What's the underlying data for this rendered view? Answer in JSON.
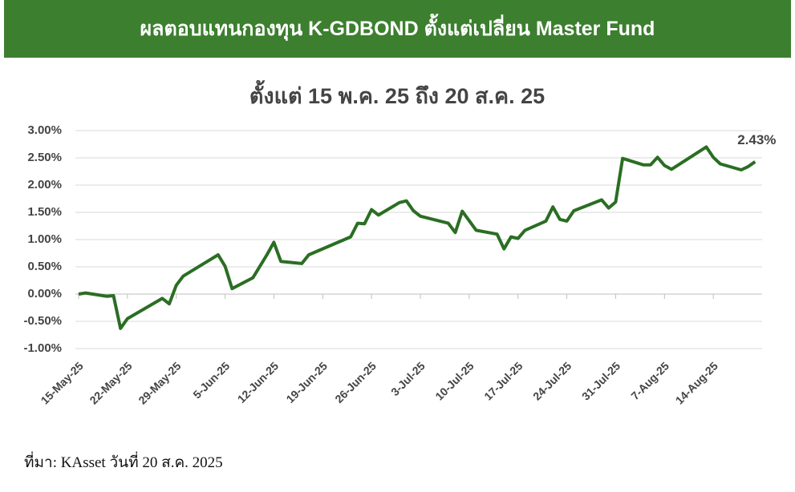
{
  "chart_data": {
    "type": "line",
    "header": "ผลตอบแทนกองทุน K-GDBOND ตั้งแต่เปลี่ยน Master Fund",
    "title": "ตั้งแต่ 15 พ.ค. 25 ถึง 20 ส.ค. 25",
    "source": "ที่มา:  KAsset วันที่ 20 ส.ค. 2025",
    "x": [
      "2025-05-15",
      "2025-05-16",
      "2025-05-19",
      "2025-05-20",
      "2025-05-21",
      "2025-05-22",
      "2025-05-27",
      "2025-05-28",
      "2025-05-29",
      "2025-05-30",
      "2025-06-04",
      "2025-06-05",
      "2025-06-06",
      "2025-06-09",
      "2025-06-11",
      "2025-06-12",
      "2025-06-13",
      "2025-06-16",
      "2025-06-17",
      "2025-06-23",
      "2025-06-24",
      "2025-06-25",
      "2025-06-26",
      "2025-06-27",
      "2025-06-30",
      "2025-07-01",
      "2025-07-02",
      "2025-07-03",
      "2025-07-07",
      "2025-07-08",
      "2025-07-09",
      "2025-07-11",
      "2025-07-14",
      "2025-07-15",
      "2025-07-16",
      "2025-07-17",
      "2025-07-18",
      "2025-07-21",
      "2025-07-22",
      "2025-07-23",
      "2025-07-24",
      "2025-07-25",
      "2025-07-29",
      "2025-07-30",
      "2025-07-31",
      "2025-08-01",
      "2025-08-04",
      "2025-08-05",
      "2025-08-06",
      "2025-08-07",
      "2025-08-08",
      "2025-08-13",
      "2025-08-14",
      "2025-08-15",
      "2025-08-18",
      "2025-08-19",
      "2025-08-20"
    ],
    "series": [
      {
        "name": "K-GDBOND",
        "color": "#2a6e23",
        "values": [
          0.0,
          0.02,
          -0.04,
          -0.03,
          -0.63,
          -0.45,
          -0.08,
          -0.18,
          0.16,
          0.33,
          0.72,
          0.51,
          0.1,
          0.3,
          0.72,
          0.95,
          0.6,
          0.56,
          0.72,
          1.05,
          1.3,
          1.29,
          1.55,
          1.45,
          1.68,
          1.71,
          1.53,
          1.43,
          1.3,
          1.13,
          1.52,
          1.17,
          1.1,
          0.83,
          1.05,
          1.02,
          1.17,
          1.34,
          1.6,
          1.37,
          1.34,
          1.53,
          1.73,
          1.58,
          1.69,
          2.49,
          2.37,
          2.37,
          2.51,
          2.36,
          2.29,
          2.7,
          2.51,
          2.39,
          2.28,
          2.34,
          2.43
        ]
      }
    ],
    "annotations": [
      {
        "text": "2.43%",
        "x": "2025-08-20",
        "y": 2.43
      }
    ],
    "xlim": [
      "2025-05-15",
      "2025-08-21"
    ],
    "xticks": [
      {
        "value": "2025-05-15",
        "label": "15-May-25"
      },
      {
        "value": "2025-05-22",
        "label": "22-May-25"
      },
      {
        "value": "2025-05-29",
        "label": "29-May-25"
      },
      {
        "value": "2025-06-05",
        "label": "5-Jun-25"
      },
      {
        "value": "2025-06-12",
        "label": "12-Jun-25"
      },
      {
        "value": "2025-06-19",
        "label": "19-Jun-25"
      },
      {
        "value": "2025-06-26",
        "label": "26-Jun-25"
      },
      {
        "value": "2025-07-03",
        "label": "3-Jul-25"
      },
      {
        "value": "2025-07-10",
        "label": "10-Jul-25"
      },
      {
        "value": "2025-07-17",
        "label": "17-Jul-25"
      },
      {
        "value": "2025-07-24",
        "label": "24-Jul-25"
      },
      {
        "value": "2025-07-31",
        "label": "31-Jul-25"
      },
      {
        "value": "2025-08-07",
        "label": "7-Aug-25"
      },
      {
        "value": "2025-08-14",
        "label": "14-Aug-25"
      }
    ],
    "ylim": [
      -1,
      3
    ],
    "yticks": [
      {
        "value": -1,
        "label": "-1.00%"
      },
      {
        "value": -0.5,
        "label": "-0.50%"
      },
      {
        "value": 0,
        "label": "0.00%"
      },
      {
        "value": 0.5,
        "label": "0.50%"
      },
      {
        "value": 1,
        "label": "1.00%"
      },
      {
        "value": 1.5,
        "label": "1.50%"
      },
      {
        "value": 2,
        "label": "2.00%"
      },
      {
        "value": 2.5,
        "label": "2.50%"
      },
      {
        "value": 3,
        "label": "3.00%"
      }
    ],
    "grid": true
  }
}
